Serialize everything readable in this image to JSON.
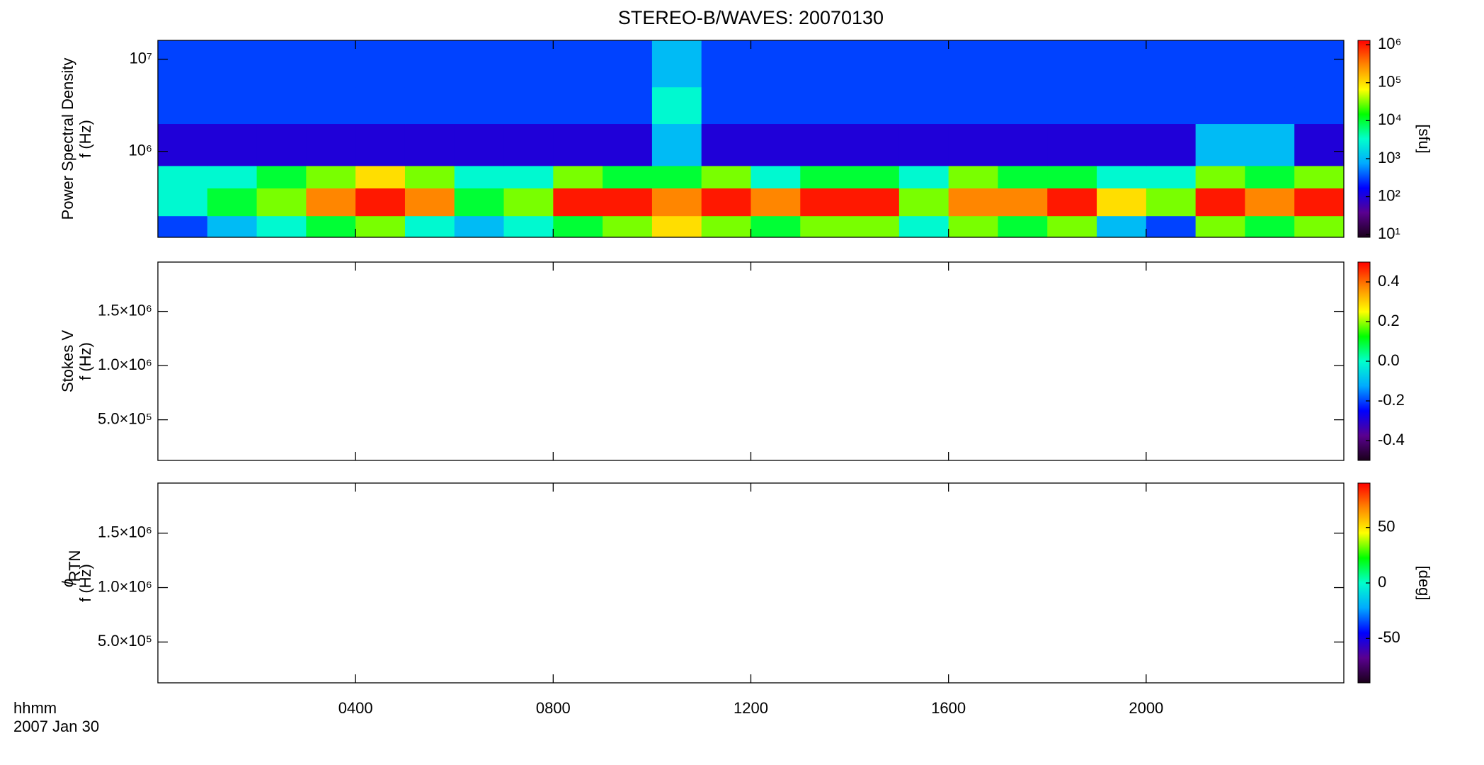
{
  "chart_data": [
    {
      "type": "heatmap",
      "title": "STEREO-B/WAVES: 20070130",
      "ylabel": "Power Spectral Density",
      "ylabel2": "f (Hz)",
      "yscale": "log",
      "xlim": [
        0,
        24
      ],
      "ylim": [
        117000,
        16000000
      ],
      "yticks": [
        {
          "value": 1000000,
          "label": "10⁶"
        },
        {
          "value": 10000000,
          "label": "10⁷"
        }
      ],
      "x_bins": [
        0,
        1,
        2,
        3,
        4,
        5,
        6,
        7,
        8,
        9,
        10,
        11,
        12,
        13,
        14,
        15,
        16,
        17,
        18,
        19,
        20,
        21,
        22,
        23,
        24
      ],
      "y_bins": [
        117000,
        200000,
        400000,
        700000,
        2000000,
        5000000,
        16000000
      ],
      "z": [
        [
          300,
          1000,
          3000,
          10000,
          30000,
          3000,
          1000,
          3000,
          10000,
          30000,
          100000,
          30000,
          10000,
          30000,
          30000,
          3000,
          30000,
          10000,
          30000,
          1000,
          300,
          30000,
          10000,
          30000
        ],
        [
          3000,
          10000,
          30000,
          300000,
          1000000,
          300000,
          10000,
          30000,
          1000000,
          1000000,
          300000,
          1000000,
          300000,
          1000000,
          1000000,
          30000,
          300000,
          300000,
          1000000,
          100000,
          30000,
          1000000,
          300000,
          1000000
        ],
        [
          3000,
          3000,
          10000,
          30000,
          100000,
          30000,
          3000,
          3000,
          30000,
          10000,
          10000,
          30000,
          3000,
          10000,
          10000,
          3000,
          30000,
          10000,
          10000,
          3000,
          3000,
          30000,
          10000,
          30000
        ],
        [
          100,
          100,
          100,
          100,
          100,
          100,
          100,
          100,
          100,
          100,
          1000,
          100,
          100,
          100,
          100,
          100,
          100,
          100,
          100,
          100,
          100,
          1000,
          1000,
          100
        ],
        [
          300,
          300,
          300,
          300,
          300,
          300,
          300,
          300,
          300,
          300,
          3000,
          300,
          300,
          300,
          300,
          300,
          300,
          300,
          300,
          300,
          300,
          300,
          300,
          300
        ],
        [
          300,
          300,
          300,
          300,
          300,
          300,
          300,
          300,
          300,
          300,
          1000,
          300,
          300,
          300,
          300,
          300,
          300,
          300,
          300,
          300,
          300,
          300,
          300,
          300
        ]
      ],
      "zscale": "log",
      "zlim": [
        8.5,
        1300000
      ],
      "zticks": [
        {
          "value": 10,
          "label": "10¹"
        },
        {
          "value": 100,
          "label": "10²"
        },
        {
          "value": 1000,
          "label": "10³"
        },
        {
          "value": 10000,
          "label": "10⁴"
        },
        {
          "value": 100000,
          "label": "10⁵"
        },
        {
          "value": 1000000,
          "label": "10⁶"
        }
      ],
      "zlabel": "[sfu]",
      "colormap": [
        "#1a001a",
        "#5a0090",
        "#0000ff",
        "#00aaff",
        "#00ffcc",
        "#00ff00",
        "#ffff00",
        "#ff8800",
        "#ff0000"
      ]
    },
    {
      "type": "heatmap",
      "ylabel": "Stokes V",
      "ylabel2": "f (Hz)",
      "xlim": [
        0,
        24
      ],
      "ylim": [
        125000,
        1955000
      ],
      "yticks": [
        {
          "value": 500000,
          "label": "5.0×10⁵"
        },
        {
          "value": 1000000,
          "label": "1.0×10⁶"
        },
        {
          "value": 1500000,
          "label": "1.5×10⁶"
        }
      ],
      "zlim": [
        -0.5,
        0.5
      ],
      "zticks": [
        -0.4,
        -0.2,
        {
          "value": 0,
          "label": "0.0"
        },
        0.2,
        0.4
      ],
      "colormap": [
        "#1a001a",
        "#5a0090",
        "#0000ff",
        "#00aaff",
        "#00ffcc",
        "#00ff00",
        "#ffff00",
        "#ff8800",
        "#ff0000"
      ]
    },
    {
      "type": "heatmap",
      "ylabel": "ϕ",
      "ylabel_sub": "RTN",
      "ylabel2": "f (Hz)",
      "xlim": [
        0,
        24
      ],
      "ylim": [
        125000,
        1960000
      ],
      "yticks": [
        {
          "value": 500000,
          "label": "5.0×10⁵"
        },
        {
          "value": 1000000,
          "label": "1.0×10⁶"
        },
        {
          "value": 1500000,
          "label": "1.5×10⁶"
        }
      ],
      "xticks": [
        {
          "value": 4,
          "label": "0400"
        },
        {
          "value": 8,
          "label": "0800"
        },
        {
          "value": 12,
          "label": "1200"
        },
        {
          "value": 16,
          "label": "1600"
        },
        {
          "value": 20,
          "label": "2000"
        }
      ],
      "xlabel": "hhmm",
      "date": "2007 Jan 30",
      "zlim": [
        -90,
        90
      ],
      "zticks": [
        -50,
        0,
        50
      ],
      "zlabel": "[deg]",
      "colormap": [
        "#1a001a",
        "#5a0090",
        "#0000ff",
        "#00aaff",
        "#00ffcc",
        "#00ff00",
        "#ffff00",
        "#ff8800",
        "#ff0000"
      ]
    }
  ]
}
